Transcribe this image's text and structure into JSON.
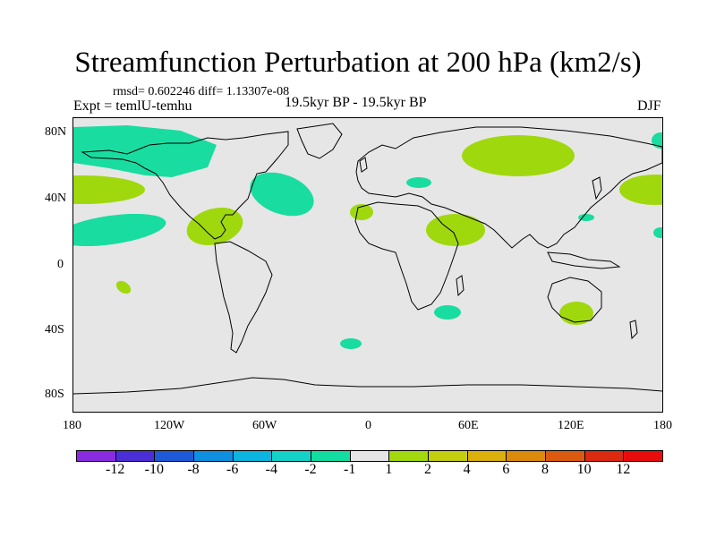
{
  "title": "Streamfunction Perturbation at 200 hPa (km2/s)",
  "stats": "rmsd= 0.602246 diff= 1.13307e-08",
  "experiment": "Expt = temlU-temhu",
  "period": "19.5kyr BP - 19.5kyr BP",
  "season": "DJF",
  "lat_labels": [
    "80N",
    "40N",
    "0",
    "40S",
    "80S"
  ],
  "lon_labels": [
    "180",
    "120W",
    "60W",
    "0",
    "60E",
    "120E",
    "180"
  ],
  "colorbar": {
    "labels": [
      "-12",
      "-10",
      "-8",
      "-6",
      "-4",
      "-2",
      "-1",
      "1",
      "2",
      "4",
      "6",
      "8",
      "10",
      "12"
    ],
    "colors": [
      "#8a2be2",
      "#4b2fd6",
      "#1e5ad8",
      "#0f8fe0",
      "#0cb4e0",
      "#14d2c8",
      "#13dca0",
      "#e6e6e6",
      "#a3d80e",
      "#c4cf10",
      "#dcb00c",
      "#dc8a0c",
      "#dc5a10",
      "#dc2a10",
      "#e80c0c"
    ]
  },
  "contour_fill": {
    "negative": "#19dca0",
    "positive": "#a0d80e"
  }
}
